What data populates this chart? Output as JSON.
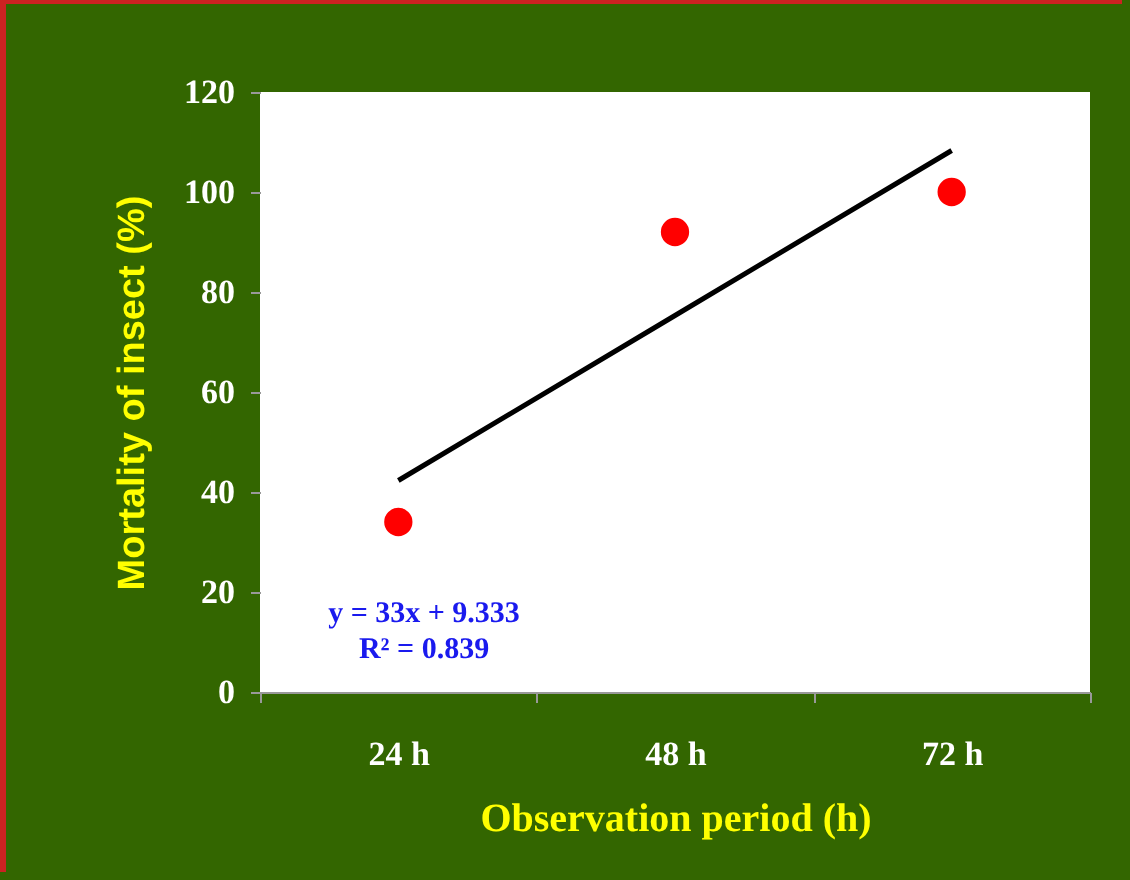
{
  "chart_data": {
    "type": "scatter",
    "xlabel": "Observation period (h)",
    "ylabel": "Mortality of insect (%)",
    "categories": [
      "24 h",
      "48 h",
      "72 h"
    ],
    "series": [
      {
        "color": "#ff0000",
        "values": [
          34,
          92,
          100
        ]
      },
      {
        "type": "line",
        "color": "#000000",
        "marker": "none",
        "values": [
          42.3,
          75.3,
          108.3
        ]
      }
    ],
    "ylim": [
      0,
      120
    ],
    "yticks": [
      0,
      20,
      40,
      60,
      80,
      100,
      120
    ],
    "grid": false,
    "marker": "circle",
    "line_style": "solid",
    "annotations": [
      "y = 33x + 9.333",
      "R² = 0.839"
    ]
  }
}
